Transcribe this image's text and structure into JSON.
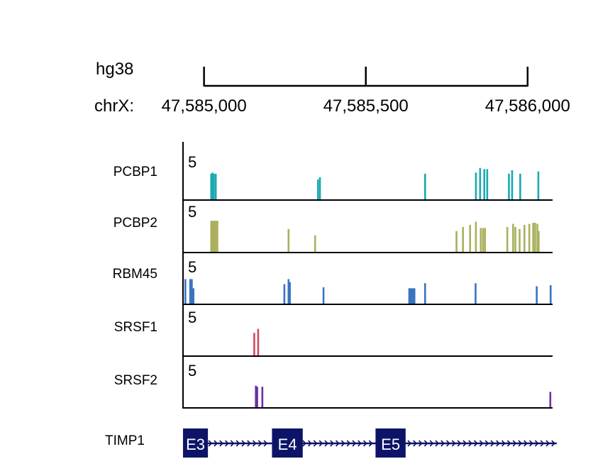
{
  "header": {
    "assembly": "hg38",
    "chrom_label": "chrX:",
    "ticks": [
      {
        "label": "47,585,000",
        "pos": 47585000
      },
      {
        "label": "47,585,500",
        "pos": 47585500
      },
      {
        "label": "47,586,000",
        "pos": 47586000
      }
    ]
  },
  "scale_label": "5",
  "chart_data": {
    "type": "bar",
    "x_range": [
      47584935,
      47586075
    ],
    "ylim": [
      0,
      5
    ],
    "tracks": [
      {
        "name": "PCBP1",
        "color": "#1aa9b0",
        "bars": [
          [
            47585022,
            2.2
          ],
          [
            47585026,
            2.3
          ],
          [
            47585030,
            2.2
          ],
          [
            47585036,
            2.2
          ],
          [
            47585352,
            1.7
          ],
          [
            47585358,
            1.9
          ],
          [
            47585683,
            2.2
          ],
          [
            47585840,
            2.3
          ],
          [
            47585853,
            2.7
          ],
          [
            47585866,
            2.6
          ],
          [
            47585875,
            2.6
          ],
          [
            47585942,
            2.2
          ],
          [
            47585952,
            2.5
          ],
          [
            47585977,
            2.2
          ],
          [
            47586033,
            2.4
          ]
        ]
      },
      {
        "name": "PCBP2",
        "color": "#aab05c",
        "bars": [
          [
            47585022,
            3.0
          ],
          [
            47585027,
            3.0
          ],
          [
            47585032,
            3.0
          ],
          [
            47585036,
            3.0
          ],
          [
            47585041,
            3.0
          ],
          [
            47585261,
            2.2
          ],
          [
            47585343,
            1.6
          ],
          [
            47585780,
            2.0
          ],
          [
            47585800,
            2.4
          ],
          [
            47585822,
            2.6
          ],
          [
            47585840,
            2.9
          ],
          [
            47585855,
            2.3
          ],
          [
            47585862,
            2.3
          ],
          [
            47585868,
            2.3
          ],
          [
            47585937,
            2.4
          ],
          [
            47585955,
            2.7
          ],
          [
            47585962,
            2.4
          ],
          [
            47585975,
            2.2
          ],
          [
            47585990,
            2.6
          ],
          [
            47586005,
            2.7
          ],
          [
            47586017,
            2.8
          ],
          [
            47586023,
            2.8
          ],
          [
            47586030,
            2.7
          ],
          [
            47586034,
            2.0
          ]
        ]
      },
      {
        "name": "RBM45",
        "color": "#3a74c0",
        "bars": [
          [
            47584942,
            2.4
          ],
          [
            47584957,
            2.4
          ],
          [
            47584962,
            2.4
          ],
          [
            47584967,
            1.5
          ],
          [
            47585248,
            1.9
          ],
          [
            47585261,
            2.4
          ],
          [
            47585265,
            2.1
          ],
          [
            47585369,
            1.6
          ],
          [
            47585634,
            1.5
          ],
          [
            47585638,
            1.5
          ],
          [
            47585642,
            1.5
          ],
          [
            47585646,
            1.5
          ],
          [
            47585650,
            1.5
          ],
          [
            47585683,
            2.0
          ],
          [
            47585839,
            2.0
          ],
          [
            47586028,
            1.7
          ],
          [
            47586071,
            1.8
          ]
        ]
      },
      {
        "name": "SRSF1",
        "color": "#d04a5e",
        "bars": [
          [
            47585155,
            2.2
          ],
          [
            47585167,
            2.6
          ]
        ]
      },
      {
        "name": "SRSF2",
        "color": "#6a2ea0",
        "bars": [
          [
            47585160,
            2.1
          ],
          [
            47585164,
            2.0
          ],
          [
            47585180,
            2.0
          ],
          [
            47586070,
            1.5
          ]
        ]
      }
    ]
  },
  "gene": {
    "name": "TIMP1",
    "start": 47584935,
    "end": 47586090,
    "exons": [
      {
        "label": "E3",
        "start": 47584935,
        "end": 47585012
      },
      {
        "label": "E4",
        "start": 47585210,
        "end": 47585305
      },
      {
        "label": "E5",
        "start": 47585530,
        "end": 47585623
      }
    ],
    "color": "#0d1468"
  }
}
